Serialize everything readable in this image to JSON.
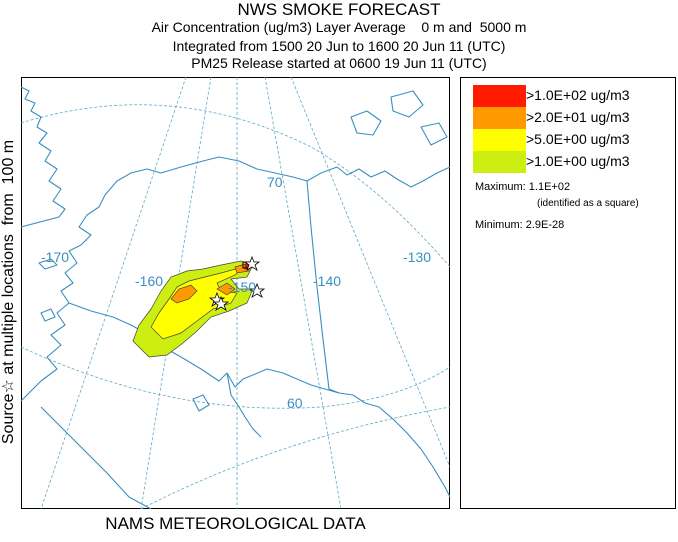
{
  "header": {
    "title": "NWS SMOKE FORECAST",
    "line1": "Air Concentration (ug/m3) Layer Average    0 m and  5000 m",
    "line2": "Integrated from 1500 20 Jun to 1600 20 Jun 11 (UTC)",
    "line3": "PM25 Release started at 0600 19 Jun 11 (UTC)"
  },
  "side_label": "Source☆ at multiple locations  from  100 m",
  "footer": "NAMS METEOROLOGICAL DATA",
  "map": {
    "longitude_labels": [
      "-170",
      "-160",
      "-150",
      "-140",
      "-130"
    ],
    "latitude_labels": [
      "70",
      "60"
    ],
    "colors": {
      "gridline": "#5fa8c8",
      "coastline": "#3a8fc0",
      "plume_red": "#ff0000",
      "plume_orange": "#ff9900",
      "plume_yellow": "#ffff00",
      "plume_green": "#ccee11"
    }
  },
  "legend": {
    "items": [
      {
        "label": ">1.0E+02 ug/m3",
        "color": "#ff1a00"
      },
      {
        "label": ">2.0E+01 ug/m3",
        "color": "#ff9900"
      },
      {
        "label": ">5.0E+00 ug/m3",
        "color": "#ffff00"
      },
      {
        "label": ">1.0E+00 ug/m3",
        "color": "#ccee11"
      }
    ],
    "maximum": "Maximum: 1.1E+02",
    "maximum_note": "(identified as a square)",
    "minimum": "Minimum: 2.9E-28"
  }
}
